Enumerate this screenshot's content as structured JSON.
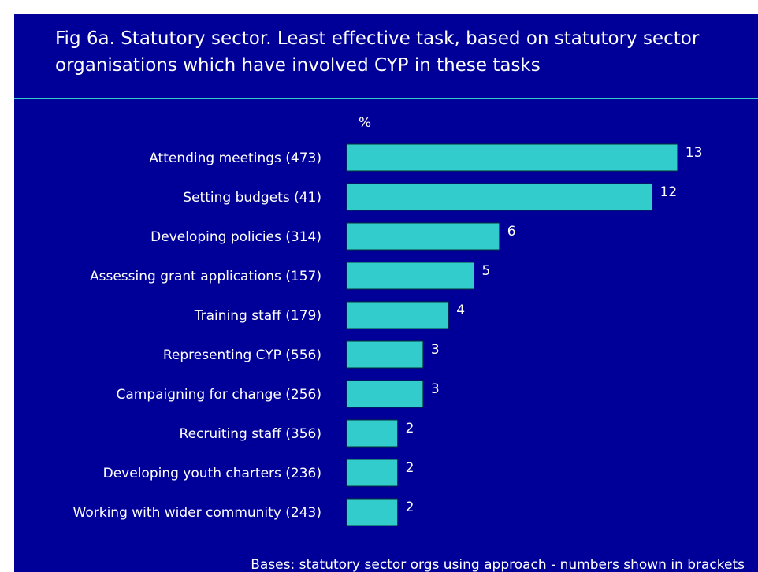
{
  "chart_data": {
    "type": "bar",
    "orientation": "horizontal",
    "title": "Fig 6a. Statutory sector. Least effective task, based on statutory sector organisations which have involved CYP in these tasks",
    "x_label": "%",
    "categories": [
      "Attending meetings (473)",
      "Setting budgets (41)",
      "Developing policies (314)",
      "Assessing grant applications (157)",
      "Training staff (179)",
      "Representing CYP (556)",
      "Campaigning for change (256)",
      "Recruiting staff (356)",
      "Developing youth charters (236)",
      "Working with wider community (243)"
    ],
    "values": [
      13,
      12,
      6,
      5,
      4,
      3,
      3,
      2,
      2,
      2
    ],
    "color": "#33cccc",
    "background": "#000099",
    "note": "Bases: statutory sector orgs using approach - numbers shown in brackets"
  }
}
